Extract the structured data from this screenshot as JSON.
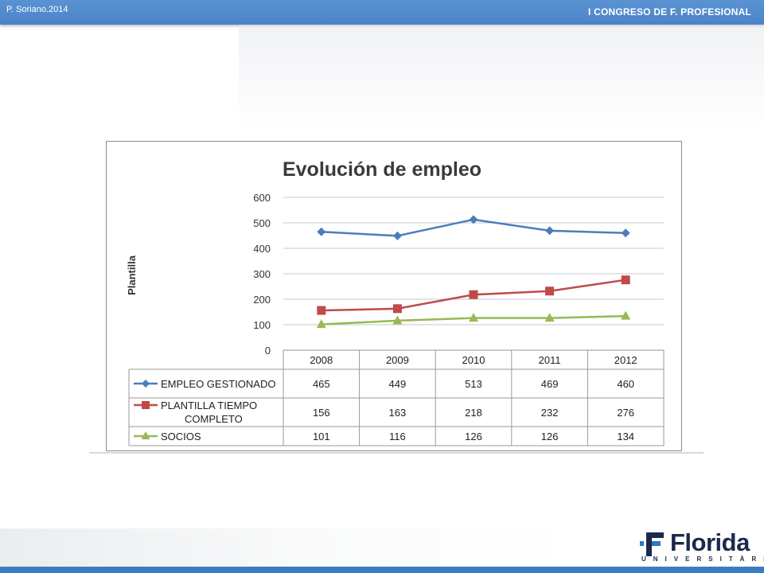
{
  "header": {
    "author": "P. Soriano.2014",
    "congress": "I CONGRESO  DE F. PROFESIONAL"
  },
  "chart_data": {
    "type": "line",
    "title": "Evolución de empleo",
    "ylabel": "Plantilla",
    "xlabel": "",
    "ylim": [
      0,
      600
    ],
    "yticks": [
      0,
      100,
      200,
      300,
      400,
      500,
      600
    ],
    "grid": true,
    "legend": "data table below chart",
    "categories": [
      "2008",
      "2009",
      "2010",
      "2011",
      "2012"
    ],
    "series": [
      {
        "name": "EMPLEO GESTIONADO",
        "values": [
          465,
          449,
          513,
          469,
          460
        ],
        "color": "#4a7ebb",
        "marker": "diamond"
      },
      {
        "name": "PLANTILLA TIEMPO COMPLETO",
        "values": [
          156,
          163,
          218,
          232,
          276
        ],
        "color": "#be4b48",
        "marker": "square"
      },
      {
        "name": "SOCIOS",
        "values": [
          101,
          116,
          126,
          126,
          134
        ],
        "color": "#98b954",
        "marker": "triangle"
      }
    ]
  },
  "logo": {
    "word": "Florida",
    "sub": "UNIVERSITÀRIA",
    "color": "#1b2a4a",
    "accent": "#2a78c0"
  }
}
